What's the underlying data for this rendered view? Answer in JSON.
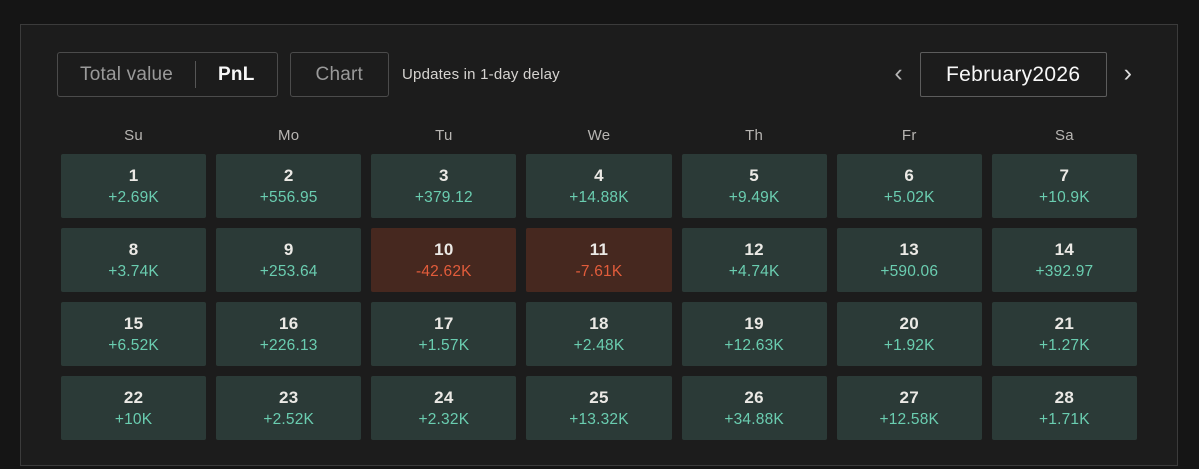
{
  "header": {
    "view_toggle": {
      "options": [
        "Total value",
        "PnL"
      ],
      "selected": "PnL"
    },
    "chart_button_label": "Chart",
    "status_text": "Updates in 1-day delay",
    "month_nav": {
      "prev_icon": "‹",
      "next_icon": "›",
      "current_month": "February2026"
    }
  },
  "calendar": {
    "weekdays": [
      "Su",
      "Mo",
      "Tu",
      "We",
      "Th",
      "Fr",
      "Sa"
    ],
    "days": [
      {
        "day": "1",
        "value": "+2.69K",
        "type": "positive"
      },
      {
        "day": "2",
        "value": "+556.95",
        "type": "positive"
      },
      {
        "day": "3",
        "value": "+379.12",
        "type": "positive"
      },
      {
        "day": "4",
        "value": "+14.88K",
        "type": "positive"
      },
      {
        "day": "5",
        "value": "+9.49K",
        "type": "positive"
      },
      {
        "day": "6",
        "value": "+5.02K",
        "type": "positive"
      },
      {
        "day": "7",
        "value": "+10.9K",
        "type": "positive"
      },
      {
        "day": "8",
        "value": "+3.74K",
        "type": "positive"
      },
      {
        "day": "9",
        "value": "+253.64",
        "type": "positive"
      },
      {
        "day": "10",
        "value": "-42.62K",
        "type": "negative"
      },
      {
        "day": "11",
        "value": "-7.61K",
        "type": "negative"
      },
      {
        "day": "12",
        "value": "+4.74K",
        "type": "positive"
      },
      {
        "day": "13",
        "value": "+590.06",
        "type": "positive"
      },
      {
        "day": "14",
        "value": "+392.97",
        "type": "positive"
      },
      {
        "day": "15",
        "value": "+6.52K",
        "type": "positive"
      },
      {
        "day": "16",
        "value": "+226.13",
        "type": "positive"
      },
      {
        "day": "17",
        "value": "+1.57K",
        "type": "positive"
      },
      {
        "day": "18",
        "value": "+2.48K",
        "type": "positive"
      },
      {
        "day": "19",
        "value": "+12.63K",
        "type": "positive"
      },
      {
        "day": "20",
        "value": "+1.92K",
        "type": "positive"
      },
      {
        "day": "21",
        "value": "+1.27K",
        "type": "positive"
      },
      {
        "day": "22",
        "value": "+10K",
        "type": "positive"
      },
      {
        "day": "23",
        "value": "+2.52K",
        "type": "positive"
      },
      {
        "day": "24",
        "value": "+2.32K",
        "type": "positive"
      },
      {
        "day": "25",
        "value": "+13.32K",
        "type": "positive"
      },
      {
        "day": "26",
        "value": "+34.88K",
        "type": "positive"
      },
      {
        "day": "27",
        "value": "+12.58K",
        "type": "positive"
      },
      {
        "day": "28",
        "value": "+1.71K",
        "type": "positive"
      }
    ]
  },
  "colors": {
    "page-bg": "#151515",
    "panel-bg": "#1c1c1c",
    "panel-border": "#3b3b3b",
    "box-border": "#4b4b4b",
    "positive-bg": "#2b3a37",
    "positive-text": "#6acdb0",
    "negative-bg": "#46281f",
    "negative-text": "#e25c3b",
    "day-number": "#ebe9e5",
    "weekday-text": "#b7b5b2",
    "muted-text": "#9a9a9a",
    "light-text": "#d5d3d0",
    "white-text": "#f8f8f8"
  }
}
